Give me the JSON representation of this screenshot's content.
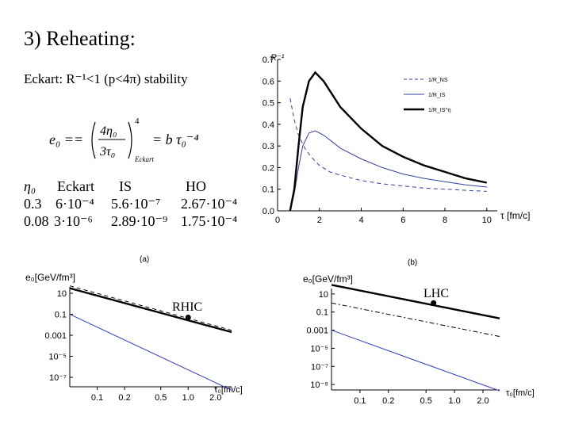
{
  "slide": {
    "title": "3) Reheating:",
    "subtitle": "Eckart: R⁻¹<1 (p<4π) stability",
    "formula": {
      "lhs": "e₀ ==",
      "num": "4η₀",
      "den": "3τ₀",
      "power": "4",
      "sub": "Eckart",
      "rhs": "= b τ₀⁻⁴"
    },
    "table": {
      "header": [
        "η₀",
        "Eckart",
        "IS",
        "HO"
      ],
      "rows": [
        [
          "0.3",
          "6·10⁻⁴",
          "5.6·10⁻⁷",
          "2.67·10⁻⁴"
        ],
        [
          "0.08",
          "3·10⁻⁶",
          "2.89·10⁻⁹",
          "1.75·10⁻⁴"
        ]
      ]
    }
  },
  "chart_data": [
    {
      "type": "line",
      "ylabel": "R⁻¹",
      "xlabel": "τ [fm/c]",
      "xlim": [
        0,
        10.5
      ],
      "ylim": [
        0,
        0.7
      ],
      "xticks": [
        "0",
        "2",
        "4",
        "6",
        "8",
        "10"
      ],
      "yticks": [
        "0.0",
        "0.1",
        "0.2",
        "0.3",
        "0.4",
        "0.5",
        "0.6",
        "0.7"
      ],
      "legend_position": "top-right",
      "series": [
        {
          "name": "1/R_NS",
          "style": "dashed",
          "color": "#3040a0",
          "x": [
            0.6,
            0.8,
            1.0,
            1.3,
            1.6,
            2.0,
            2.5,
            3,
            4,
            5,
            6,
            7,
            8,
            9,
            10
          ],
          "y": [
            0.52,
            0.42,
            0.35,
            0.29,
            0.25,
            0.21,
            0.18,
            0.165,
            0.14,
            0.125,
            0.115,
            0.105,
            0.1,
            0.095,
            0.09
          ]
        },
        {
          "name": "1/R_IS",
          "style": "solid-thin",
          "color": "#3040a0",
          "x": [
            0.6,
            0.8,
            1.0,
            1.2,
            1.5,
            1.8,
            2.2,
            2.6,
            3,
            4,
            5,
            6,
            7,
            8,
            9,
            10
          ],
          "y": [
            0.0,
            0.08,
            0.2,
            0.3,
            0.36,
            0.37,
            0.35,
            0.32,
            0.29,
            0.24,
            0.2,
            0.17,
            0.15,
            0.135,
            0.12,
            0.11
          ]
        },
        {
          "name": "1/R_IS^η",
          "style": "solid-thick",
          "color": "#000000",
          "x": [
            0.6,
            0.8,
            1.0,
            1.2,
            1.5,
            1.8,
            2.2,
            2.6,
            3,
            4,
            5,
            6,
            7,
            8,
            9,
            10
          ],
          "y": [
            0.0,
            0.1,
            0.3,
            0.48,
            0.6,
            0.64,
            0.6,
            0.54,
            0.48,
            0.38,
            0.3,
            0.25,
            0.21,
            0.18,
            0.15,
            0.13
          ]
        }
      ],
      "legend": [
        "1/R_NS",
        "1/R_IS",
        "1/R_IS^η"
      ]
    },
    {
      "type": "line",
      "panel": "(a)",
      "annotation": "RHIC",
      "ylabel": "e₀[GeV/fm³]",
      "xlabel": "τ₀[fm/c]",
      "xticks": [
        "0.1",
        "0.2",
        "0.5",
        "1.0",
        "2.0"
      ],
      "yticks": [
        "10",
        "0.1",
        "0.001",
        "10⁻⁵",
        "10⁻⁷"
      ],
      "point": {
        "x": 1.0,
        "y": 0.05
      },
      "series": [
        {
          "name": "",
          "style": "solid-thick",
          "color": "#000000",
          "x": [
            0.05,
            3.0
          ],
          "y": [
            30,
            0.002
          ]
        },
        {
          "name": "",
          "style": "dashed",
          "color": "#000000",
          "x": [
            0.05,
            3.0
          ],
          "y": [
            50,
            0.003
          ]
        },
        {
          "name": "",
          "style": "solid-thin",
          "color": "#3040c0",
          "x": [
            0.05,
            3.0
          ],
          "y": [
            0.1,
            6e-09
          ]
        }
      ]
    },
    {
      "type": "line",
      "panel": "(b)",
      "annotation": "LHC",
      "ylabel": "e₀[GeV/fm³]",
      "xlabel": "τ₀[fm/c]",
      "xticks": [
        "0.1",
        "0.2",
        "0.5",
        "1.0",
        "2.0"
      ],
      "yticks": [
        "10",
        "0.1",
        "0.001",
        "10⁻⁵",
        "10⁻⁷",
        "10⁻⁹"
      ],
      "point": {
        "x": 0.6,
        "y": 1
      },
      "series": [
        {
          "name": "",
          "style": "solid-thick",
          "color": "#000000",
          "x": [
            0.05,
            3.0
          ],
          "y": [
            100,
            0.02
          ]
        },
        {
          "name": "",
          "style": "dashdot",
          "color": "#000000",
          "x": [
            0.05,
            3.0
          ],
          "y": [
            1,
            0.0002
          ]
        },
        {
          "name": "",
          "style": "solid-thin",
          "color": "#3040c0",
          "x": [
            0.05,
            3.0
          ],
          "y": [
            0.001,
            2e-10
          ]
        }
      ]
    }
  ]
}
